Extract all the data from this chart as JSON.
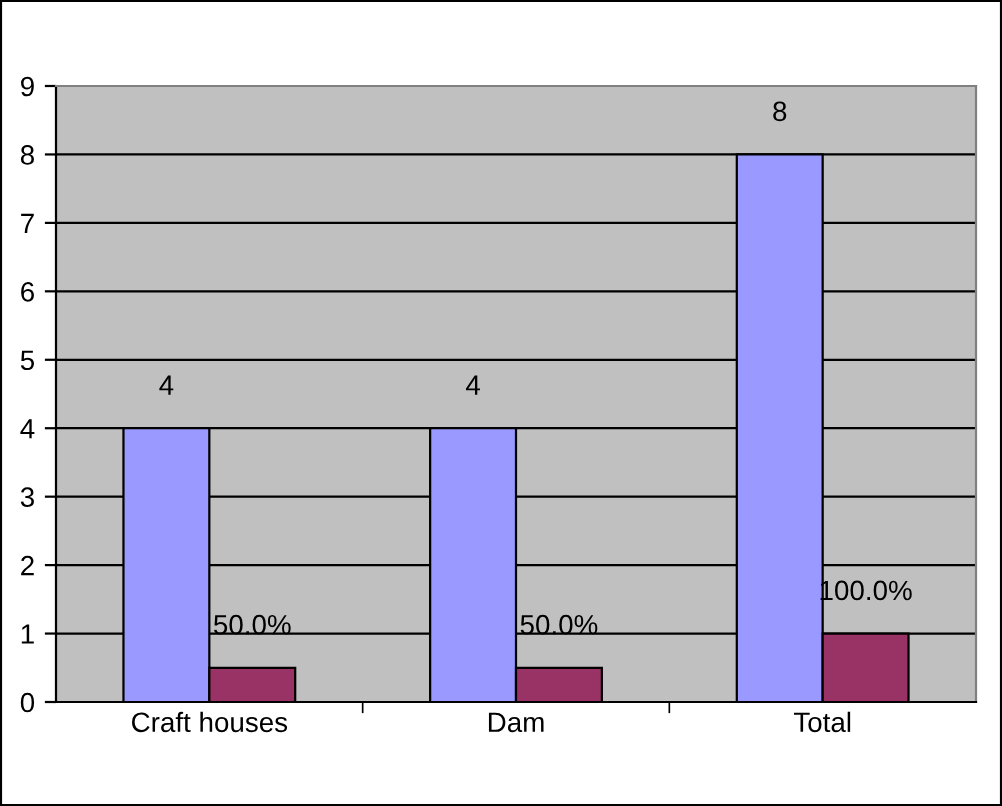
{
  "chart_data": {
    "type": "bar",
    "categories": [
      "Craft houses",
      "Dam",
      "Total"
    ],
    "series": [
      {
        "color": "#9999ff",
        "values": [
          4,
          4,
          8
        ],
        "value_labels": [
          "4",
          "4",
          "8"
        ]
      },
      {
        "color": "#993366",
        "values": [
          0.5,
          0.5,
          1
        ],
        "value_labels": [
          "50.0%",
          "50.0%",
          "100.0%"
        ]
      }
    ],
    "ylim": [
      0,
      9
    ],
    "yticks": [
      0,
      1,
      2,
      3,
      4,
      5,
      6,
      7,
      8,
      9
    ],
    "grid": "y",
    "legend": false
  }
}
